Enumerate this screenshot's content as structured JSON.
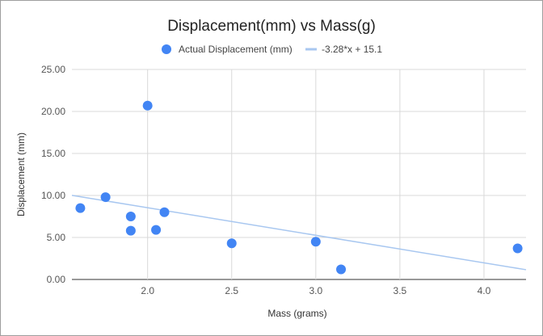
{
  "chart_data": {
    "type": "scatter",
    "title": "Displacement(mm) vs Mass(g)",
    "xlabel": "Mass (grams)",
    "ylabel": "Displacement (mm)",
    "xlim": [
      1.55,
      4.25
    ],
    "ylim": [
      0,
      25
    ],
    "x_ticks": [
      2.0,
      2.5,
      3.0,
      3.5,
      4.0
    ],
    "x_tick_labels": [
      "2.0",
      "2.5",
      "3.0",
      "3.5",
      "4.0"
    ],
    "y_ticks": [
      0,
      5,
      10,
      15,
      20,
      25
    ],
    "y_tick_labels": [
      "0.00",
      "5.00",
      "10.00",
      "15.00",
      "20.00",
      "25.00"
    ],
    "grid": true,
    "legend_position": "top",
    "series": [
      {
        "name": "Actual Displacement (mm)",
        "type": "scatter",
        "color": "#4285f4",
        "points": [
          {
            "x": 1.6,
            "y": 8.5
          },
          {
            "x": 1.75,
            "y": 9.8
          },
          {
            "x": 1.9,
            "y": 7.5
          },
          {
            "x": 1.9,
            "y": 5.8
          },
          {
            "x": 2.0,
            "y": 20.7
          },
          {
            "x": 2.05,
            "y": 5.9
          },
          {
            "x": 2.1,
            "y": 8.0
          },
          {
            "x": 2.5,
            "y": 4.3
          },
          {
            "x": 3.0,
            "y": 4.5
          },
          {
            "x": 3.15,
            "y": 1.2
          },
          {
            "x": 4.2,
            "y": 3.7
          }
        ]
      },
      {
        "name": "-3.28*x + 15.1",
        "type": "trendline",
        "color": "#a8c7f0",
        "slope": -3.28,
        "intercept": 15.1
      }
    ]
  }
}
